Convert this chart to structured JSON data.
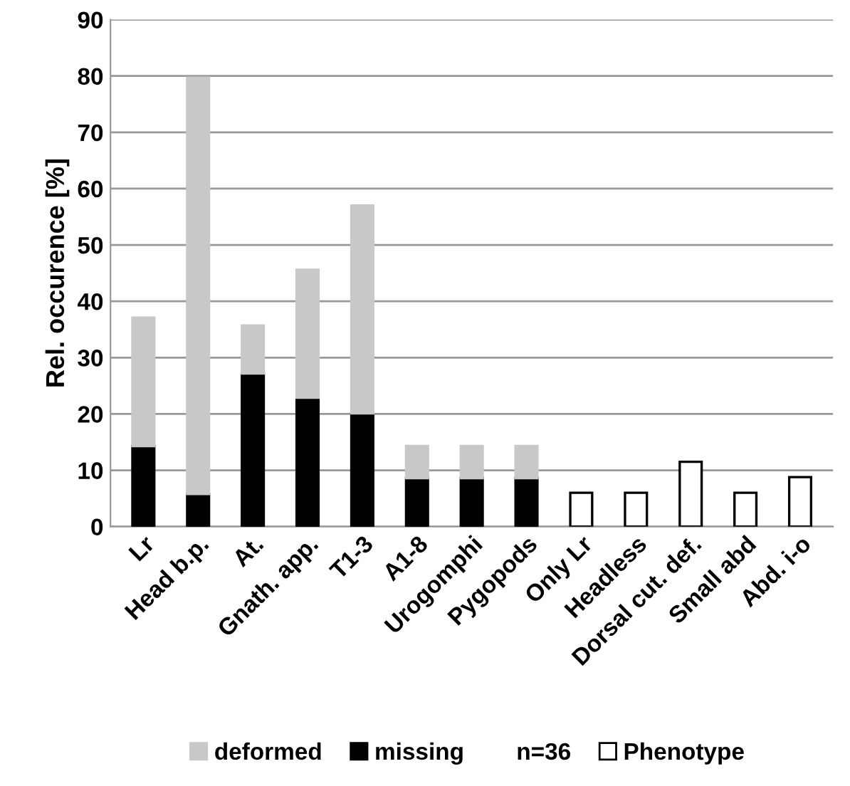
{
  "chart_data": {
    "type": "bar",
    "ylabel": "Rel. occurence [%]",
    "categories": [
      "Lr",
      "Head b.p.",
      "At.",
      "Gnath. app.",
      "T1-3",
      "A1-8",
      "Urogomphi",
      "Pygopods",
      "Only Lr",
      "Headless",
      "Dorsal cut. def.",
      "Small abd",
      "Abd. i-o"
    ],
    "stacked": true,
    "series": [
      {
        "name": "missing",
        "color": "#000000",
        "values": [
          14.3,
          5.8,
          27.2,
          22.9,
          20.1,
          8.6,
          8.6,
          8.6,
          null,
          null,
          null,
          null,
          null
        ]
      },
      {
        "name": "deformed",
        "color": "#c8c8c8",
        "values": [
          22.8,
          73.9,
          8.5,
          22.7,
          36.9,
          5.7,
          5.7,
          5.7,
          null,
          null,
          null,
          null,
          null
        ]
      },
      {
        "name": "Phenotype",
        "color": "#ffffff",
        "values": [
          null,
          null,
          null,
          null,
          null,
          null,
          null,
          null,
          6.0,
          6.0,
          11.5,
          6.0,
          8.8
        ]
      }
    ],
    "ylim": [
      0,
      90
    ],
    "yticks": [
      0,
      10,
      20,
      30,
      40,
      50,
      60,
      70,
      80,
      90
    ],
    "grid": "y",
    "legend": "bottom",
    "annotations": [
      "n=36"
    ]
  }
}
